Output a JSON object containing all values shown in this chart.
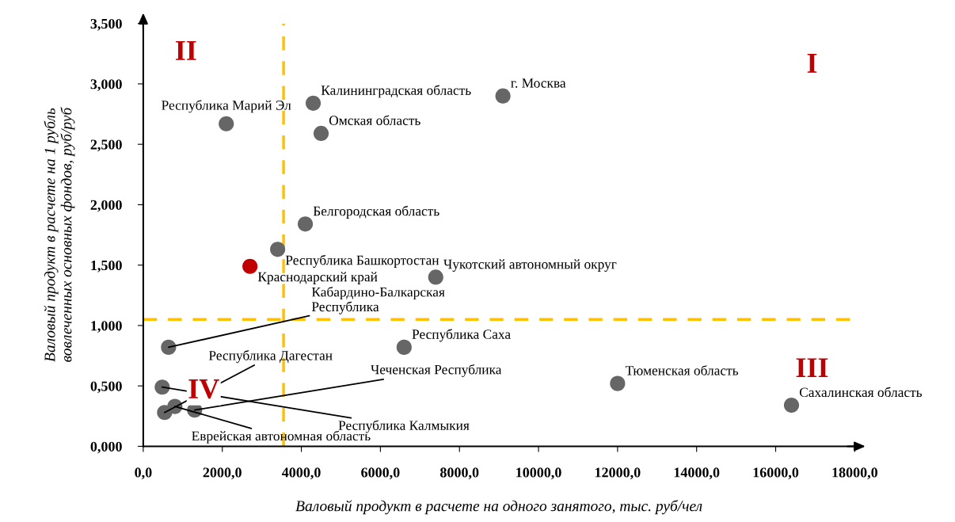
{
  "chart_data": {
    "type": "scatter",
    "xlabel": "Валовый продукт в расчете на одного занятого, тыс. руб/чел",
    "ylabel": "Валовый продукт в расчете на 1 рубль\nвовлеченных основных фондов, руб/руб",
    "xlim": [
      0,
      18000
    ],
    "ylim": [
      0,
      3.5
    ],
    "xticks": [
      {
        "value": 0,
        "label": "0,0"
      },
      {
        "value": 2000,
        "label": "2000,0"
      },
      {
        "value": 4000,
        "label": "4000,0"
      },
      {
        "value": 6000,
        "label": "6000,0"
      },
      {
        "value": 8000,
        "label": "8000,0"
      },
      {
        "value": 10000,
        "label": "10000,0"
      },
      {
        "value": 12000,
        "label": "12000,0"
      },
      {
        "value": 14000,
        "label": "14000,0"
      },
      {
        "value": 16000,
        "label": "16000,0"
      },
      {
        "value": 18000,
        "label": "18000,0"
      }
    ],
    "yticks": [
      {
        "value": 0,
        "label": "0,000"
      },
      {
        "value": 0.5,
        "label": "0,500"
      },
      {
        "value": 1.0,
        "label": "1,000"
      },
      {
        "value": 1.5,
        "label": "1,500"
      },
      {
        "value": 2.0,
        "label": "2,000"
      },
      {
        "value": 2.5,
        "label": "2,500"
      },
      {
        "value": 3.0,
        "label": "3,000"
      },
      {
        "value": 3.5,
        "label": "3,500"
      }
    ],
    "grid": false,
    "legend": false,
    "marker": "circle",
    "ref_lines": [
      {
        "axis": "x",
        "value": 3550,
        "color": "#ffc000",
        "line_style": "dashed"
      },
      {
        "axis": "y",
        "value": 1.05,
        "color": "#ffc000",
        "line_style": "dashed"
      }
    ],
    "annotations": [
      "I",
      "II",
      "III",
      "IV"
    ],
    "series": [
      {
        "name": "г. Москва",
        "color": "#666666",
        "x": [
          9100
        ],
        "values": [
          2.9
        ]
      },
      {
        "name": "Калининградская область",
        "color": "#666666",
        "x": [
          4300
        ],
        "values": [
          2.84
        ]
      },
      {
        "name": "Республика Марий Эл",
        "color": "#666666",
        "x": [
          2100
        ],
        "values": [
          2.67
        ]
      },
      {
        "name": "Омская область",
        "color": "#666666",
        "x": [
          4500
        ],
        "values": [
          2.59
        ]
      },
      {
        "name": "Белгородская область",
        "color": "#666666",
        "x": [
          4100
        ],
        "values": [
          1.84
        ]
      },
      {
        "name": "Республика Башкортостан",
        "color": "#666666",
        "x": [
          3400
        ],
        "values": [
          1.63
        ]
      },
      {
        "name": "Краснодарский край",
        "color": "#c00000",
        "x": [
          2700
        ],
        "values": [
          1.49
        ]
      },
      {
        "name": "Чукотский автономный округ",
        "color": "#666666",
        "x": [
          7400
        ],
        "values": [
          1.4
        ]
      },
      {
        "name": "Кабардино-Балкарская\nРеспублика",
        "color": "#666666",
        "x": [
          640
        ],
        "values": [
          0.82
        ]
      },
      {
        "name": "Республика Саха",
        "color": "#666666",
        "x": [
          6600
        ],
        "values": [
          0.82
        ]
      },
      {
        "name": "Тюменская область",
        "color": "#666666",
        "x": [
          12000
        ],
        "values": [
          0.52
        ]
      },
      {
        "name": "Сахалинская область",
        "color": "#666666",
        "x": [
          16400
        ],
        "values": [
          0.34
        ]
      },
      {
        "name": "Республика Калмыкия",
        "color": "#666666",
        "x": [
          480
        ],
        "values": [
          0.49
        ]
      },
      {
        "name": "Еврейская автономная область",
        "color": "#666666",
        "x": [
          800
        ],
        "values": [
          0.33
        ]
      },
      {
        "name": "Чеченская Республика",
        "color": "#666666",
        "x": [
          1300
        ],
        "values": [
          0.3
        ]
      },
      {
        "name": "Республика Дагестан",
        "color": "#666666",
        "x": [
          540
        ],
        "values": [
          0.28
        ]
      }
    ]
  }
}
